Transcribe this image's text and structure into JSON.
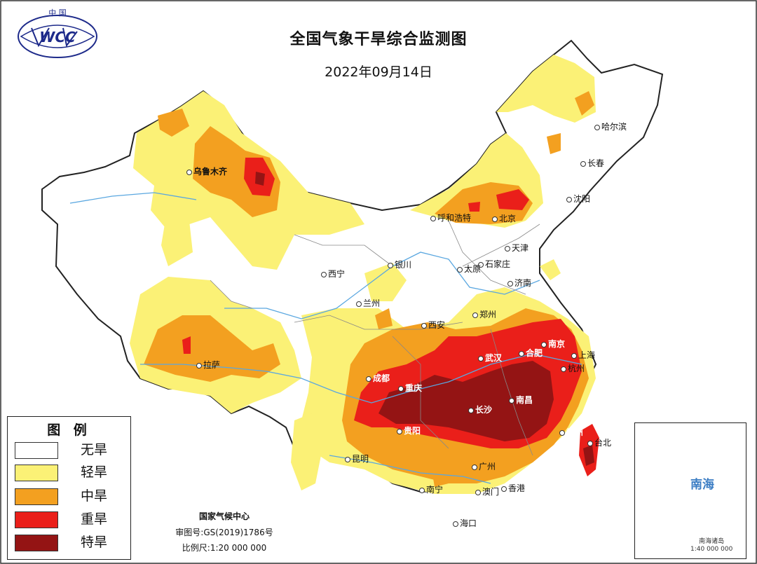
{
  "title": "全国气象干旱综合监测图",
  "date": "2022年09月14日",
  "logo": {
    "text": "WCC",
    "arc_text": "中 国"
  },
  "legend": {
    "title": "图 例",
    "items": [
      {
        "label": "无旱",
        "color": "#ffffff"
      },
      {
        "label": "轻旱",
        "color": "#fbf176"
      },
      {
        "label": "中旱",
        "color": "#f3a020"
      },
      {
        "label": "重旱",
        "color": "#ea1f1a"
      },
      {
        "label": "特旱",
        "color": "#941414"
      }
    ]
  },
  "credits": {
    "org": "国家气候中心",
    "approval": "审图号:GS(2019)1786号",
    "scale": "比例尺:1:20 000 000"
  },
  "cities": [
    {
      "name": "乌鲁木齐"
    },
    {
      "name": "哈尔滨"
    },
    {
      "name": "长春"
    },
    {
      "name": "沈阳"
    },
    {
      "name": "呼和浩特"
    },
    {
      "name": "北京"
    },
    {
      "name": "天津"
    },
    {
      "name": "石家庄"
    },
    {
      "name": "太原"
    },
    {
      "name": "济南"
    },
    {
      "name": "银川"
    },
    {
      "name": "西宁"
    },
    {
      "name": "兰州"
    },
    {
      "name": "西安"
    },
    {
      "name": "郑州"
    },
    {
      "name": "武汉"
    },
    {
      "name": "合肥"
    },
    {
      "name": "南京"
    },
    {
      "name": "上海"
    },
    {
      "name": "杭州"
    },
    {
      "name": "拉萨"
    },
    {
      "name": "成都"
    },
    {
      "name": "重庆"
    },
    {
      "name": "长沙"
    },
    {
      "name": "南昌"
    },
    {
      "name": "贵阳"
    },
    {
      "name": "福州"
    },
    {
      "name": "台北"
    },
    {
      "name": "昆明"
    },
    {
      "name": "广州"
    },
    {
      "name": "南宁"
    },
    {
      "name": "澳门"
    },
    {
      "name": "香港"
    },
    {
      "name": "海口"
    }
  ],
  "inset": {
    "label": "南海",
    "scale_title": "南海诸岛",
    "scale": "1:40 000 000"
  },
  "colors": {
    "none": "#ffffff",
    "light": "#fbf176",
    "moderate": "#f3a020",
    "severe": "#ea1f1a",
    "extreme": "#941414",
    "river": "#5aa7e0",
    "border": "#222222"
  }
}
